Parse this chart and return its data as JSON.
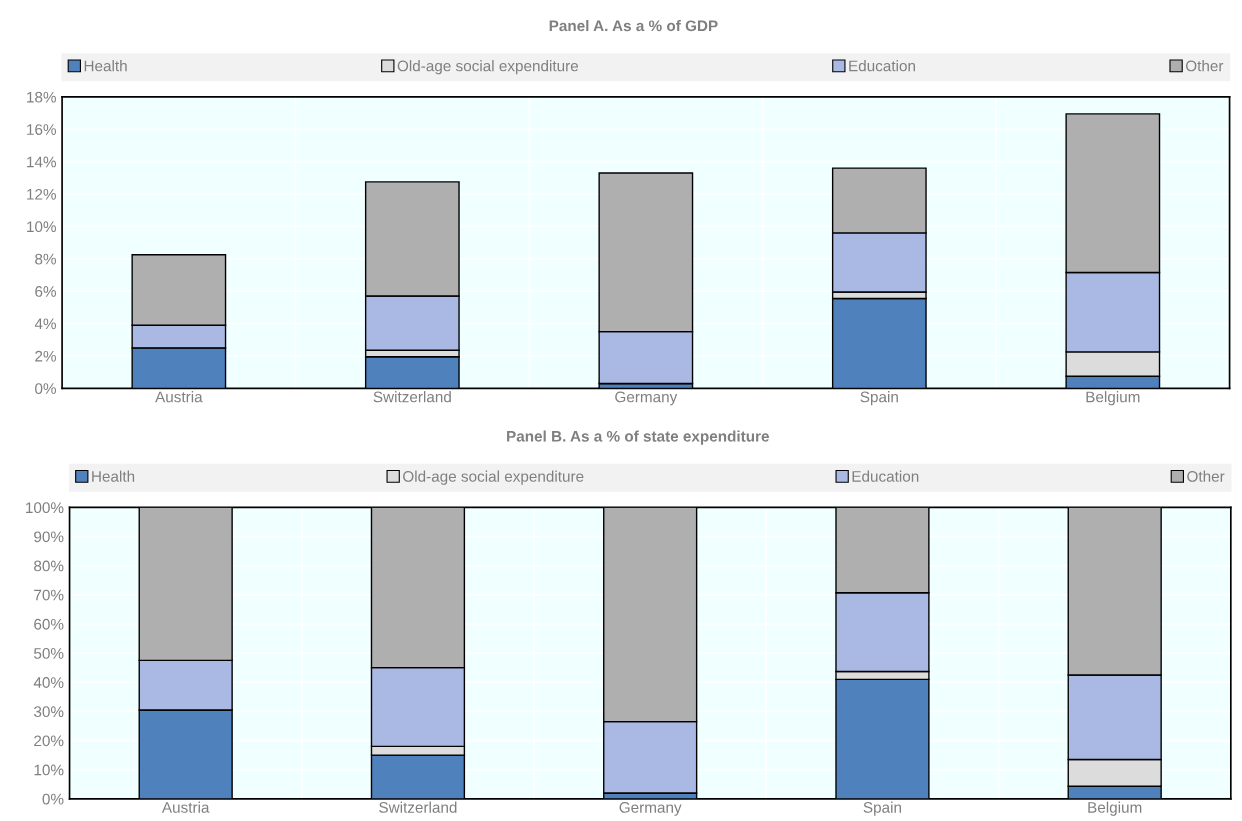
{
  "chart_data": [
    {
      "type": "bar",
      "title": "Panel A. As a % of GDP",
      "stacked": true,
      "legend": "top",
      "grid": true,
      "categories": [
        "Austria",
        "Switzerland",
        "Germany",
        "Spain",
        "Belgium"
      ],
      "series": [
        {
          "name": "Health",
          "color": "#4f81bd",
          "values": [
            2.5,
            1.95,
            0.3,
            5.55,
            0.75
          ]
        },
        {
          "name": "Old-age social expenditure",
          "color": "#dcdcdc",
          "values": [
            0,
            0.4,
            0,
            0.4,
            1.5
          ]
        },
        {
          "name": "Education",
          "color": "#a9b9e3",
          "values": [
            1.4,
            3.35,
            3.2,
            3.65,
            4.9
          ]
        },
        {
          "name": "Other",
          "color": "#afafaf",
          "values": [
            4.35,
            7.05,
            9.8,
            4.0,
            9.8
          ]
        }
      ],
      "ylim": [
        0,
        18
      ],
      "yticks": [
        {
          "value": 0,
          "label": "0%"
        },
        {
          "value": 2,
          "label": "2%"
        },
        {
          "value": 4,
          "label": "4%"
        },
        {
          "value": 6,
          "label": "6%"
        },
        {
          "value": 8,
          "label": "8%"
        },
        {
          "value": 10,
          "label": "10%"
        },
        {
          "value": 12,
          "label": "12%"
        },
        {
          "value": 14,
          "label": "14%"
        },
        {
          "value": 16,
          "label": "16%"
        },
        {
          "value": 18,
          "label": "18%"
        }
      ]
    },
    {
      "type": "bar",
      "title": "Panel B. As a % of state expenditure",
      "stacked": true,
      "legend": "top",
      "grid": true,
      "categories": [
        "Austria",
        "Switzerland",
        "Germany",
        "Spain",
        "Belgium"
      ],
      "series": [
        {
          "name": "Health",
          "color": "#4f81bd",
          "values": [
            30.5,
            15,
            2,
            41,
            4.3
          ]
        },
        {
          "name": "Old-age social expenditure",
          "color": "#dcdcdc",
          "values": [
            0,
            3,
            0,
            2.7,
            9.2
          ]
        },
        {
          "name": "Education",
          "color": "#a9b9e3",
          "values": [
            17,
            27,
            24.5,
            27,
            29
          ]
        },
        {
          "name": "Other",
          "color": "#afafaf",
          "values": [
            52.5,
            55,
            73.5,
            29.3,
            57.5
          ]
        }
      ],
      "ylim": [
        0,
        100
      ],
      "yticks": [
        {
          "value": 0,
          "label": "0%"
        },
        {
          "value": 10,
          "label": "10%"
        },
        {
          "value": 20,
          "label": "20%"
        },
        {
          "value": 30,
          "label": "30%"
        },
        {
          "value": 40,
          "label": "40%"
        },
        {
          "value": 50,
          "label": "50%"
        },
        {
          "value": 60,
          "label": "60%"
        },
        {
          "value": 70,
          "label": "70%"
        },
        {
          "value": 80,
          "label": "80%"
        },
        {
          "value": 90,
          "label": "90%"
        },
        {
          "value": 100,
          "label": "100%"
        }
      ]
    }
  ]
}
